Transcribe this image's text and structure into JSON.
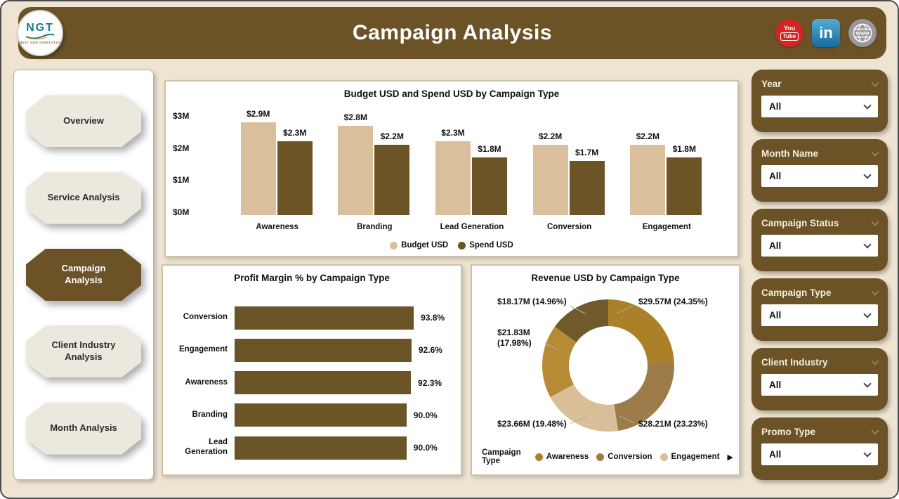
{
  "header": {
    "title": "Campaign Analysis",
    "logo": {
      "text": "NGT",
      "subtext": "NEXT GEN TEMPLATES"
    },
    "social": {
      "youtube_line1": "You",
      "youtube_line2": "Tube",
      "linkedin": "in",
      "web": "www"
    }
  },
  "nav": {
    "items": [
      {
        "label": "Overview",
        "active": false
      },
      {
        "label": "Service Analysis",
        "active": false
      },
      {
        "label": "Campaign Analysis",
        "active": true
      },
      {
        "label": "Client Industry Analysis",
        "active": false
      },
      {
        "label": "Month Analysis",
        "active": false
      }
    ]
  },
  "filters": [
    {
      "label": "Year",
      "value": "All"
    },
    {
      "label": "Month Name",
      "value": "All"
    },
    {
      "label": "Campaign Status",
      "value": "All"
    },
    {
      "label": "Campaign Type",
      "value": "All"
    },
    {
      "label": "Client Industry",
      "value": "All"
    },
    {
      "label": "Promo Type",
      "value": "All"
    }
  ],
  "chart_data": [
    {
      "id": "budget_spend",
      "type": "bar",
      "title": "Budget USD and Spend USD by Campaign Type",
      "categories": [
        "Awareness",
        "Branding",
        "Lead Generation",
        "Conversion",
        "Engagement"
      ],
      "series": [
        {
          "name": "Budget USD",
          "color": "#D9BF9C",
          "values": [
            2.9,
            2.8,
            2.3,
            2.2,
            2.2
          ],
          "labels": [
            "$2.9M",
            "$2.8M",
            "$2.3M",
            "$2.2M",
            "$2.2M"
          ]
        },
        {
          "name": "Spend USD",
          "color": "#6B5426",
          "values": [
            2.3,
            2.2,
            1.8,
            1.7,
            1.8
          ],
          "labels": [
            "$2.3M",
            "$2.2M",
            "$1.8M",
            "$1.7M",
            "$1.8M"
          ]
        }
      ],
      "yticks": [
        {
          "label": "$0M",
          "value": 0
        },
        {
          "label": "$1M",
          "value": 1
        },
        {
          "label": "$2M",
          "value": 2
        },
        {
          "label": "$3M",
          "value": 3
        }
      ],
      "ylim": [
        0,
        3.25
      ],
      "legend_position": "bottom"
    },
    {
      "id": "profit_margin",
      "type": "bar",
      "orientation": "horizontal",
      "title": "Profit Margin % by Campaign Type",
      "categories": [
        "Conversion",
        "Engagement",
        "Awareness",
        "Branding",
        "Lead Generation"
      ],
      "values": [
        93.8,
        92.6,
        92.3,
        90.0,
        90.0
      ],
      "labels": [
        "93.8%",
        "92.6%",
        "92.3%",
        "90.0%",
        "90.0%"
      ],
      "bar_color": "#6B5426",
      "xlim": [
        0,
        100
      ]
    },
    {
      "id": "revenue_donut",
      "type": "pie",
      "subtype": "donut",
      "title": "Revenue USD by Campaign Type",
      "slices": [
        {
          "name": "Awareness",
          "label": "$29.57M (24.35%)",
          "value_musd": 29.57,
          "pct": 24.35,
          "color": "#AC8028"
        },
        {
          "name": "Conversion",
          "label": "$28.21M (23.23%)",
          "value_musd": 28.21,
          "pct": 23.23,
          "color": "#9D7C49"
        },
        {
          "name": "Engagement",
          "label": "$23.66M (19.48%)",
          "value_musd": 23.66,
          "pct": 19.48,
          "color": "#D8BF97"
        },
        {
          "name": "Lead Generation",
          "label": "$21.83M (17.98%)",
          "value_musd": 21.83,
          "pct": 17.98,
          "color": "#B78B35"
        },
        {
          "name": "Branding",
          "label": "$18.17M (14.96%)",
          "value_musd": 18.17,
          "pct": 14.96,
          "color": "#705A2B"
        }
      ],
      "legend_title": "Campaign Type",
      "legend_items": [
        {
          "name": "Awareness",
          "color": "#AC8028"
        },
        {
          "name": "Conversion",
          "color": "#9D7C49"
        },
        {
          "name": "Engagement",
          "color": "#D8BF97"
        }
      ],
      "legend_more_arrow": "▶"
    }
  ]
}
